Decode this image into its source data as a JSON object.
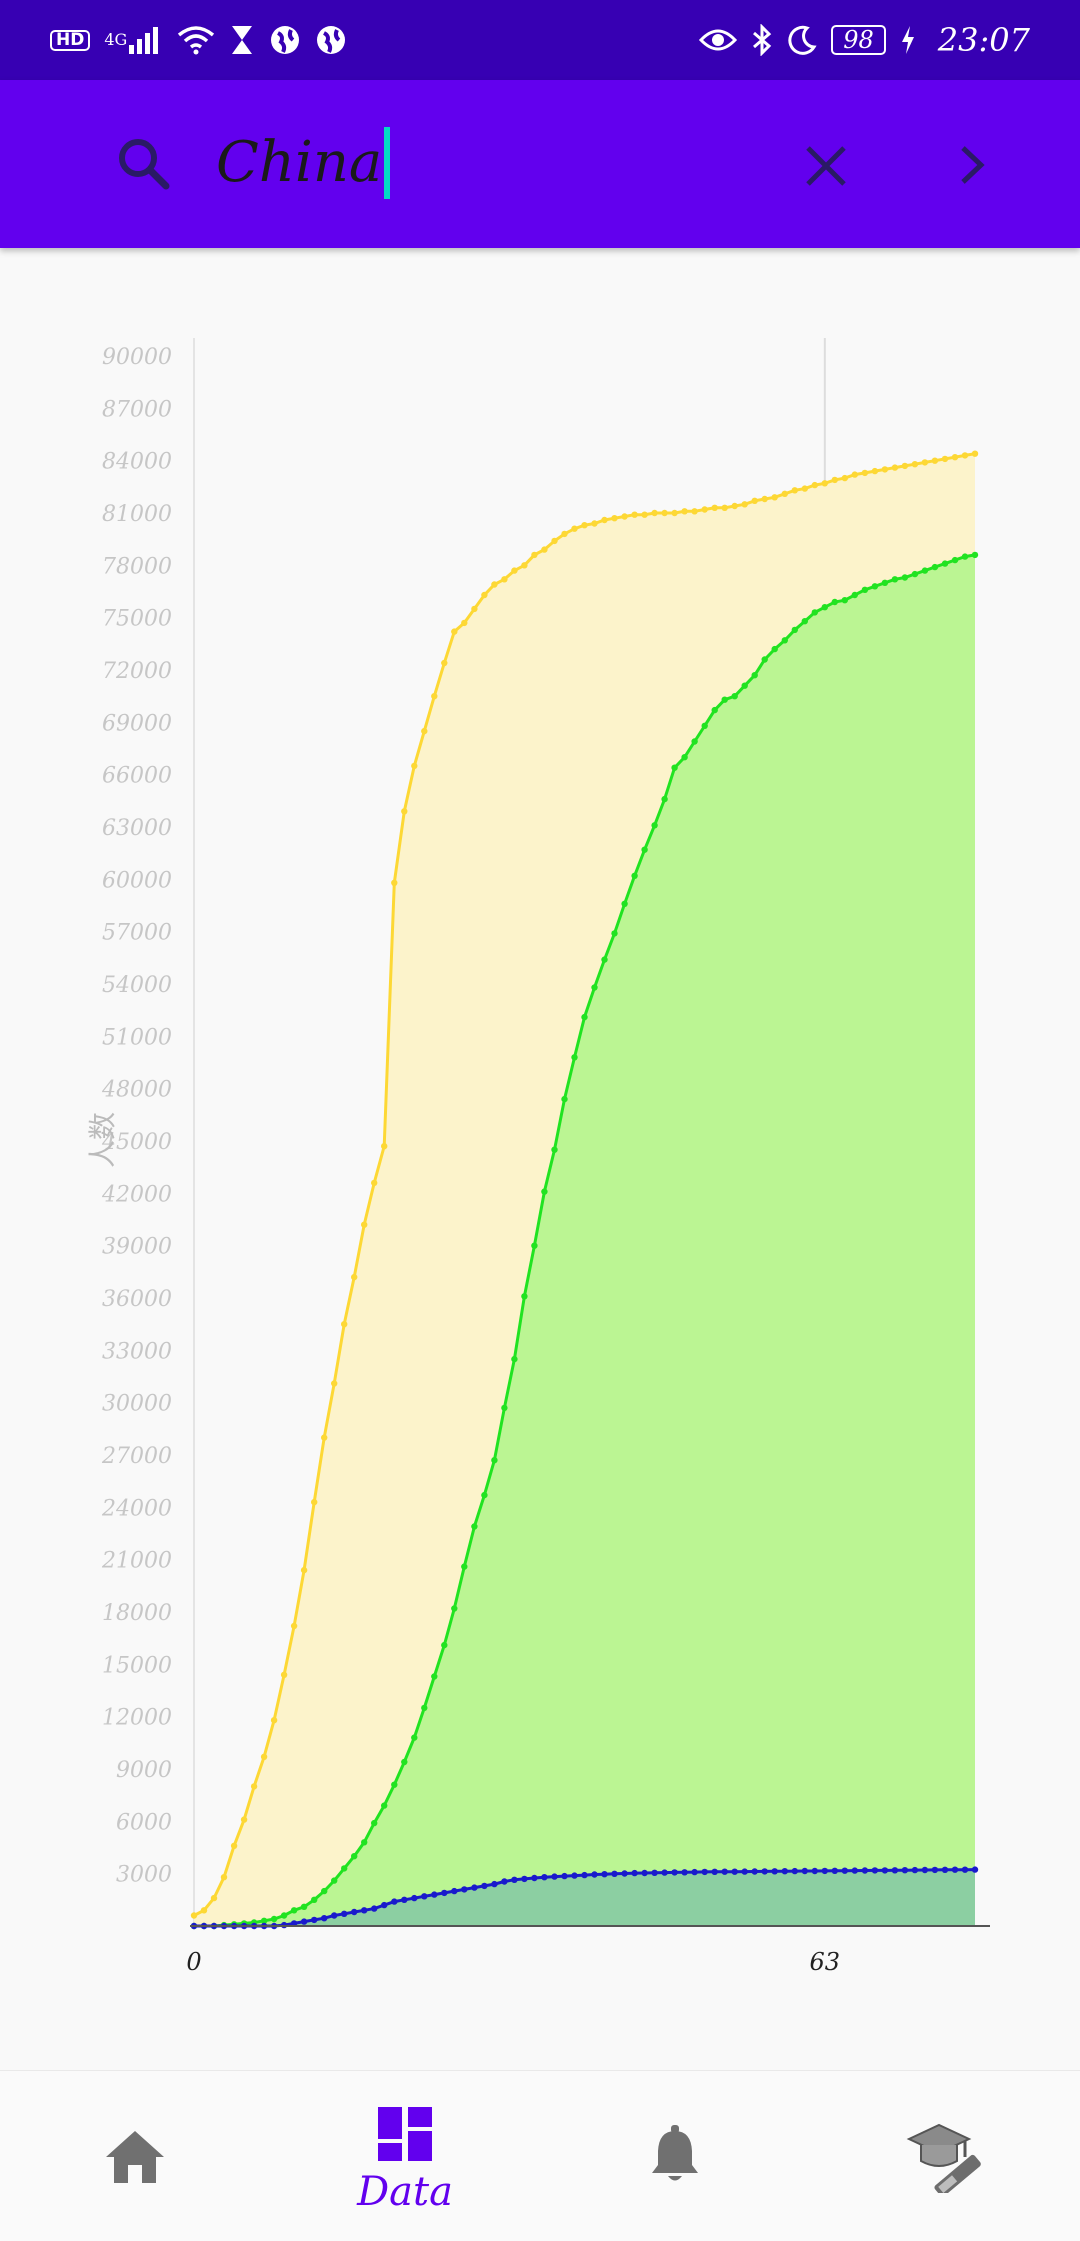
{
  "status_bar": {
    "left_badge": "HD",
    "network": "4G",
    "battery": "98",
    "time": "23:07"
  },
  "search": {
    "query": "China",
    "icons": {
      "search": "search-icon",
      "clear": "close-icon",
      "next": "chevron-right-icon"
    }
  },
  "colors": {
    "status_bar": "#3700b3",
    "app_bar": "#6200ee",
    "cursor": "#03dac5",
    "nav_active": "#6200ee",
    "nav_inactive": "#707070"
  },
  "chart_data": {
    "type": "area",
    "title": "",
    "xlabel": "",
    "ylabel": "人数",
    "x_tick_labels": [
      "0",
      "63"
    ],
    "x_ticks": [
      0,
      63
    ],
    "xlim": [
      0,
      78
    ],
    "ylim": [
      0,
      90000
    ],
    "y_tick_labels": [
      "3000",
      "6000",
      "9000",
      "12000",
      "15000",
      "18000",
      "21000",
      "24000",
      "27000",
      "30000",
      "33000",
      "36000",
      "39000",
      "42000",
      "45000",
      "48000",
      "51000",
      "54000",
      "57000",
      "60000",
      "63000",
      "66000",
      "69000",
      "72000",
      "75000",
      "78000",
      "81000",
      "84000",
      "87000",
      "90000"
    ],
    "y_ticks": [
      3000,
      6000,
      9000,
      12000,
      15000,
      18000,
      21000,
      24000,
      27000,
      30000,
      33000,
      36000,
      39000,
      42000,
      45000,
      48000,
      51000,
      54000,
      57000,
      60000,
      63000,
      66000,
      69000,
      72000,
      75000,
      78000,
      81000,
      84000,
      87000,
      90000
    ],
    "grid": false,
    "highlight_x": 63,
    "series": [
      {
        "color": "#fdd835",
        "fill": "#fcf3cb",
        "points": [
          [
            0,
            600
          ],
          [
            1,
            900
          ],
          [
            2,
            1600
          ],
          [
            3,
            2800
          ],
          [
            4,
            4600
          ],
          [
            5,
            6100
          ],
          [
            6,
            8000
          ],
          [
            7,
            9700
          ],
          [
            8,
            11800
          ],
          [
            9,
            14400
          ],
          [
            10,
            17200
          ],
          [
            11,
            20400
          ],
          [
            12,
            24300
          ],
          [
            13,
            28000
          ],
          [
            14,
            31100
          ],
          [
            15,
            34500
          ],
          [
            16,
            37200
          ],
          [
            17,
            40200
          ],
          [
            18,
            42600
          ],
          [
            19,
            44700
          ],
          [
            20,
            59800
          ],
          [
            21,
            63900
          ],
          [
            22,
            66500
          ],
          [
            23,
            68500
          ],
          [
            24,
            70500
          ],
          [
            25,
            72400
          ],
          [
            26,
            74200
          ],
          [
            27,
            74700
          ],
          [
            28,
            75500
          ],
          [
            29,
            76300
          ],
          [
            30,
            76900
          ],
          [
            31,
            77200
          ],
          [
            32,
            77700
          ],
          [
            33,
            78000
          ],
          [
            34,
            78600
          ],
          [
            35,
            78900
          ],
          [
            36,
            79400
          ],
          [
            37,
            79800
          ],
          [
            38,
            80100
          ],
          [
            39,
            80300
          ],
          [
            40,
            80400
          ],
          [
            41,
            80600
          ],
          [
            42,
            80700
          ],
          [
            43,
            80800
          ],
          [
            44,
            80900
          ],
          [
            45,
            80900
          ],
          [
            46,
            81000
          ],
          [
            47,
            81000
          ],
          [
            48,
            81000
          ],
          [
            49,
            81100
          ],
          [
            50,
            81100
          ],
          [
            51,
            81200
          ],
          [
            52,
            81300
          ],
          [
            53,
            81300
          ],
          [
            54,
            81400
          ],
          [
            55,
            81500
          ],
          [
            56,
            81700
          ],
          [
            57,
            81800
          ],
          [
            58,
            81900
          ],
          [
            59,
            82100
          ],
          [
            60,
            82300
          ],
          [
            61,
            82400
          ],
          [
            62,
            82600
          ],
          [
            63,
            82700
          ],
          [
            64,
            82900
          ],
          [
            65,
            83000
          ],
          [
            66,
            83200
          ],
          [
            67,
            83300
          ],
          [
            68,
            83400
          ],
          [
            69,
            83500
          ],
          [
            70,
            83600
          ],
          [
            71,
            83700
          ],
          [
            72,
            83800
          ],
          [
            73,
            83900
          ],
          [
            74,
            84000
          ],
          [
            75,
            84100
          ],
          [
            76,
            84200
          ],
          [
            77,
            84300
          ],
          [
            78,
            84400
          ]
        ]
      },
      {
        "color": "#21e321",
        "fill": "#bbf593",
        "points": [
          [
            0,
            0
          ],
          [
            1,
            0
          ],
          [
            2,
            0
          ],
          [
            3,
            50
          ],
          [
            4,
            100
          ],
          [
            5,
            150
          ],
          [
            6,
            200
          ],
          [
            7,
            300
          ],
          [
            8,
            400
          ],
          [
            9,
            600
          ],
          [
            10,
            900
          ],
          [
            11,
            1100
          ],
          [
            12,
            1500
          ],
          [
            13,
            2000
          ],
          [
            14,
            2600
          ],
          [
            15,
            3300
          ],
          [
            16,
            4000
          ],
          [
            17,
            4800
          ],
          [
            18,
            5900
          ],
          [
            19,
            6900
          ],
          [
            20,
            8100
          ],
          [
            21,
            9400
          ],
          [
            22,
            10800
          ],
          [
            23,
            12500
          ],
          [
            24,
            14300
          ],
          [
            25,
            16100
          ],
          [
            26,
            18200
          ],
          [
            27,
            20600
          ],
          [
            28,
            22900
          ],
          [
            29,
            24700
          ],
          [
            30,
            26700
          ],
          [
            31,
            29700
          ],
          [
            32,
            32500
          ],
          [
            33,
            36100
          ],
          [
            34,
            39000
          ],
          [
            35,
            42100
          ],
          [
            36,
            44500
          ],
          [
            37,
            47400
          ],
          [
            38,
            49800
          ],
          [
            39,
            52100
          ],
          [
            40,
            53800
          ],
          [
            41,
            55400
          ],
          [
            42,
            56900
          ],
          [
            43,
            58600
          ],
          [
            44,
            60200
          ],
          [
            45,
            61700
          ],
          [
            46,
            63100
          ],
          [
            47,
            64600
          ],
          [
            48,
            66400
          ],
          [
            49,
            67000
          ],
          [
            50,
            67900
          ],
          [
            51,
            68800
          ],
          [
            52,
            69700
          ],
          [
            53,
            70300
          ],
          [
            54,
            70500
          ],
          [
            55,
            71100
          ],
          [
            56,
            71700
          ],
          [
            57,
            72600
          ],
          [
            58,
            73200
          ],
          [
            59,
            73700
          ],
          [
            60,
            74300
          ],
          [
            61,
            74800
          ],
          [
            62,
            75300
          ],
          [
            63,
            75600
          ],
          [
            64,
            75900
          ],
          [
            65,
            76000
          ],
          [
            66,
            76300
          ],
          [
            67,
            76600
          ],
          [
            68,
            76800
          ],
          [
            69,
            77000
          ],
          [
            70,
            77200
          ],
          [
            71,
            77300
          ],
          [
            72,
            77500
          ],
          [
            73,
            77700
          ],
          [
            74,
            77900
          ],
          [
            75,
            78100
          ],
          [
            76,
            78300
          ],
          [
            77,
            78500
          ],
          [
            78,
            78600
          ]
        ]
      },
      {
        "color": "#1a1acc",
        "fill": "#8ccfa2",
        "points": [
          [
            0,
            0
          ],
          [
            1,
            0
          ],
          [
            2,
            0
          ],
          [
            3,
            0
          ],
          [
            4,
            0
          ],
          [
            5,
            0
          ],
          [
            6,
            0
          ],
          [
            7,
            0
          ],
          [
            8,
            0
          ],
          [
            9,
            50
          ],
          [
            10,
            150
          ],
          [
            11,
            250
          ],
          [
            12,
            350
          ],
          [
            13,
            450
          ],
          [
            14,
            600
          ],
          [
            15,
            700
          ],
          [
            16,
            800
          ],
          [
            17,
            900
          ],
          [
            18,
            1000
          ],
          [
            19,
            1200
          ],
          [
            20,
            1400
          ],
          [
            21,
            1500
          ],
          [
            22,
            1600
          ],
          [
            23,
            1700
          ],
          [
            24,
            1800
          ],
          [
            25,
            1900
          ],
          [
            26,
            2000
          ],
          [
            27,
            2100
          ],
          [
            28,
            2200
          ],
          [
            29,
            2300
          ],
          [
            30,
            2400
          ],
          [
            31,
            2550
          ],
          [
            32,
            2650
          ],
          [
            33,
            2700
          ],
          [
            34,
            2750
          ],
          [
            35,
            2800
          ],
          [
            36,
            2830
          ],
          [
            37,
            2860
          ],
          [
            38,
            2890
          ],
          [
            39,
            2920
          ],
          [
            40,
            2950
          ],
          [
            41,
            2970
          ],
          [
            42,
            2990
          ],
          [
            43,
            3010
          ],
          [
            44,
            3030
          ],
          [
            45,
            3040
          ],
          [
            46,
            3050
          ],
          [
            47,
            3060
          ],
          [
            48,
            3070
          ],
          [
            49,
            3080
          ],
          [
            50,
            3090
          ],
          [
            51,
            3100
          ],
          [
            52,
            3105
          ],
          [
            53,
            3110
          ],
          [
            54,
            3115
          ],
          [
            55,
            3120
          ],
          [
            56,
            3125
          ],
          [
            57,
            3130
          ],
          [
            58,
            3135
          ],
          [
            59,
            3140
          ],
          [
            60,
            3145
          ],
          [
            61,
            3150
          ],
          [
            62,
            3155
          ],
          [
            63,
            3160
          ],
          [
            64,
            3165
          ],
          [
            65,
            3170
          ],
          [
            66,
            3175
          ],
          [
            67,
            3180
          ],
          [
            68,
            3185
          ],
          [
            69,
            3190
          ],
          [
            70,
            3195
          ],
          [
            71,
            3200
          ],
          [
            72,
            3205
          ],
          [
            73,
            3210
          ],
          [
            74,
            3215
          ],
          [
            75,
            3220
          ],
          [
            76,
            3225
          ],
          [
            77,
            3230
          ],
          [
            78,
            3235
          ]
        ]
      }
    ]
  },
  "bottom_nav": {
    "items": [
      {
        "icon": "home-icon",
        "label": ""
      },
      {
        "icon": "dashboard-icon",
        "label": "Data",
        "active": true
      },
      {
        "icon": "bell-icon",
        "label": ""
      },
      {
        "icon": "graduation-icon",
        "label": ""
      }
    ]
  }
}
